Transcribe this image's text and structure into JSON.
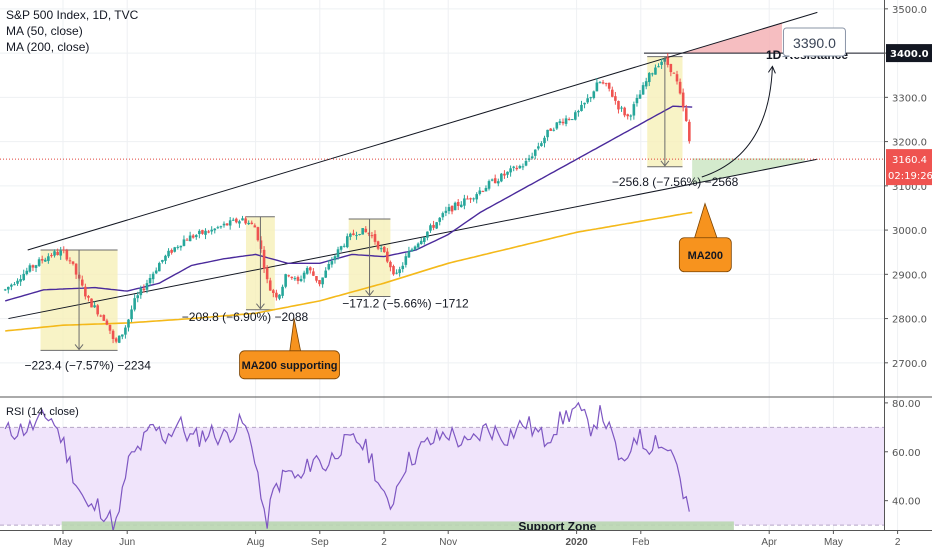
{
  "header": {
    "title": "S&P 500 Index, 1D, TVC",
    "indicators": [
      "MA (50, close)",
      "MA (200, close)"
    ]
  },
  "rsi_header": "RSI (14, close)",
  "chart_data": [
    {
      "type": "candlestick",
      "title": "S&P 500 Index, 1D, TVC",
      "x_ticks": [
        {
          "label": "May",
          "t": 0
        },
        {
          "label": "Jun",
          "t": 1
        },
        {
          "label": "Aug",
          "t": 3
        },
        {
          "label": "Sep",
          "t": 4
        },
        {
          "label": "2",
          "t": 5
        },
        {
          "label": "Nov",
          "t": 6
        },
        {
          "label": "2020",
          "t": 8
        },
        {
          "label": "Feb",
          "t": 9
        },
        {
          "label": "Apr",
          "t": 11
        },
        {
          "label": "May",
          "t": 12
        },
        {
          "label": "2",
          "t": 13
        }
      ],
      "x_range": [
        -0.9,
        13.05
      ],
      "ylim": [
        2625,
        3520
      ],
      "y_ticks": [
        "3500.0",
        "3400.0",
        "3300.0",
        "3200.0",
        "3100.0",
        "3000.0",
        "2900.0",
        "2800.0",
        "2700.0"
      ],
      "price_anchors": [
        [
          -0.9,
          2865
        ],
        [
          -0.7,
          2892
        ],
        [
          -0.45,
          2920
        ],
        [
          -0.2,
          2945
        ],
        [
          0.0,
          2950
        ],
        [
          0.1,
          2935
        ],
        [
          0.25,
          2885
        ],
        [
          0.4,
          2840
        ],
        [
          0.55,
          2815
        ],
        [
          0.7,
          2790
        ],
        [
          0.8,
          2740
        ],
        [
          0.9,
          2760
        ],
        [
          1.0,
          2790
        ],
        [
          1.1,
          2835
        ],
        [
          1.3,
          2880
        ],
        [
          1.5,
          2925
        ],
        [
          1.7,
          2955
        ],
        [
          1.9,
          2980
        ],
        [
          2.1,
          2990
        ],
        [
          2.3,
          2998
        ],
        [
          2.5,
          3010
        ],
        [
          2.8,
          3025
        ],
        [
          3.0,
          3005
        ],
        [
          3.1,
          2945
        ],
        [
          3.2,
          2870
        ],
        [
          3.35,
          2850
        ],
        [
          3.5,
          2905
        ],
        [
          3.65,
          2880
        ],
        [
          3.8,
          2915
        ],
        [
          4.0,
          2880
        ],
        [
          4.2,
          2935
        ],
        [
          4.4,
          2975
        ],
        [
          4.6,
          3000
        ],
        [
          4.8,
          2990
        ],
        [
          5.0,
          2945
        ],
        [
          5.1,
          2920
        ],
        [
          5.2,
          2895
        ],
        [
          5.35,
          2940
        ],
        [
          5.5,
          2970
        ],
        [
          5.7,
          3000
        ],
        [
          6.0,
          3045
        ],
        [
          6.3,
          3070
        ],
        [
          6.5,
          3090
        ],
        [
          6.7,
          3110
        ],
        [
          7.0,
          3135
        ],
        [
          7.2,
          3150
        ],
        [
          7.4,
          3190
        ],
        [
          7.6,
          3230
        ],
        [
          7.8,
          3250
        ],
        [
          8.0,
          3260
        ],
        [
          8.2,
          3300
        ],
        [
          8.35,
          3335
        ],
        [
          8.5,
          3320
        ],
        [
          8.65,
          3280
        ],
        [
          8.8,
          3255
        ],
        [
          8.95,
          3295
        ],
        [
          9.1,
          3340
        ],
        [
          9.25,
          3375
        ],
        [
          9.35,
          3385
        ],
        [
          9.45,
          3370
        ],
        [
          9.55,
          3340
        ],
        [
          9.7,
          3250
        ],
        [
          9.8,
          3160
        ]
      ],
      "ma50": [
        [
          -0.9,
          2840
        ],
        [
          -0.3,
          2865
        ],
        [
          0.5,
          2870
        ],
        [
          1.0,
          2862
        ],
        [
          1.5,
          2880
        ],
        [
          2.0,
          2920
        ],
        [
          2.5,
          2935
        ],
        [
          3.0,
          2945
        ],
        [
          3.5,
          2925
        ],
        [
          4.0,
          2925
        ],
        [
          4.5,
          2945
        ],
        [
          5.0,
          2940
        ],
        [
          5.5,
          2955
        ],
        [
          6.0,
          2990
        ],
        [
          6.5,
          3040
        ],
        [
          7.0,
          3080
        ],
        [
          7.5,
          3120
        ],
        [
          8.0,
          3160
        ],
        [
          8.5,
          3200
        ],
        [
          9.0,
          3240
        ],
        [
          9.5,
          3280
        ],
        [
          9.8,
          3278
        ]
      ],
      "ma200": [
        [
          -0.9,
          2772
        ],
        [
          0.0,
          2785
        ],
        [
          1.0,
          2790
        ],
        [
          2.0,
          2800
        ],
        [
          3.0,
          2812
        ],
        [
          4.0,
          2840
        ],
        [
          5.0,
          2880
        ],
        [
          6.0,
          2925
        ],
        [
          7.0,
          2960
        ],
        [
          8.0,
          2995
        ],
        [
          9.0,
          3020
        ],
        [
          9.8,
          3040
        ]
      ],
      "channel_upper": [
        [
          -0.55,
          2955
        ],
        [
          11.75,
          3492
        ]
      ],
      "channel_lower": [
        [
          -0.85,
          2800
        ],
        [
          11.75,
          3160
        ]
      ],
      "resistance_level": 3400.0,
      "current_price": "3160.4",
      "current_price_value": 3160.4,
      "countdown": "02:19:26",
      "resistance_label": "1D Resistance",
      "resistance_price": "3400.0",
      "target_price": "3390.0",
      "correction_boxes": [
        {
          "x0": -0.35,
          "x1": 0.85,
          "top": 2955,
          "bottom": 2728,
          "label": "−223.4 (−7.57%) −2234",
          "label_x": -0.6,
          "label_price": 2685
        },
        {
          "x0": 2.85,
          "x1": 3.3,
          "top": 3030,
          "bottom": 2820,
          "label": "−208.8 (−6.90%) −2088",
          "label_x": 1.85,
          "label_price": 2795
        },
        {
          "x0": 4.45,
          "x1": 5.1,
          "top": 3025,
          "bottom": 2850,
          "label": "−171.2 (−5.66%) −1712",
          "label_x": 4.35,
          "label_price": 2825
        },
        {
          "x0": 9.1,
          "x1": 9.65,
          "top": 3392,
          "bottom": 3143,
          "label": "−256.8 (−7.56%) −2568",
          "label_x": 8.55,
          "label_price": 3100
        }
      ],
      "callouts": [
        {
          "text": "MA200 supporting"
        },
        {
          "text": "MA200"
        }
      ]
    },
    {
      "type": "line",
      "title": "RSI (14, close)",
      "ylim": [
        28,
        82
      ],
      "y_ticks": [
        "80.00",
        "60.00",
        "40.00"
      ],
      "band": [
        30,
        70
      ],
      "support_zone_label": "Support Zone",
      "anchors": [
        [
          -0.9,
          68
        ],
        [
          -0.5,
          70
        ],
        [
          -0.2,
          75
        ],
        [
          0.0,
          64
        ],
        [
          0.2,
          48
        ],
        [
          0.4,
          36
        ],
        [
          0.55,
          38
        ],
        [
          0.75,
          32
        ],
        [
          0.85,
          30
        ],
        [
          1.0,
          55
        ],
        [
          1.2,
          62
        ],
        [
          1.4,
          70
        ],
        [
          1.6,
          66
        ],
        [
          1.8,
          72
        ],
        [
          2.0,
          65
        ],
        [
          2.3,
          68
        ],
        [
          2.5,
          66
        ],
        [
          2.8,
          72
        ],
        [
          3.0,
          58
        ],
        [
          3.1,
          38
        ],
        [
          3.15,
          29
        ],
        [
          3.3,
          45
        ],
        [
          3.5,
          52
        ],
        [
          3.7,
          48
        ],
        [
          3.9,
          58
        ],
        [
          4.1,
          54
        ],
        [
          4.3,
          62
        ],
        [
          4.6,
          65
        ],
        [
          4.8,
          58
        ],
        [
          5.0,
          40
        ],
        [
          5.1,
          38
        ],
        [
          5.3,
          54
        ],
        [
          5.6,
          62
        ],
        [
          6.0,
          68
        ],
        [
          6.3,
          62
        ],
        [
          6.6,
          70
        ],
        [
          6.9,
          66
        ],
        [
          7.2,
          72
        ],
        [
          7.5,
          65
        ],
        [
          7.8,
          74
        ],
        [
          8.0,
          78
        ],
        [
          8.2,
          70
        ],
        [
          8.4,
          76
        ],
        [
          8.6,
          62
        ],
        [
          8.75,
          52
        ],
        [
          8.9,
          68
        ],
        [
          9.1,
          62
        ],
        [
          9.25,
          66
        ],
        [
          9.4,
          60
        ],
        [
          9.5,
          62
        ],
        [
          9.65,
          42
        ],
        [
          9.8,
          31
        ]
      ]
    }
  ]
}
